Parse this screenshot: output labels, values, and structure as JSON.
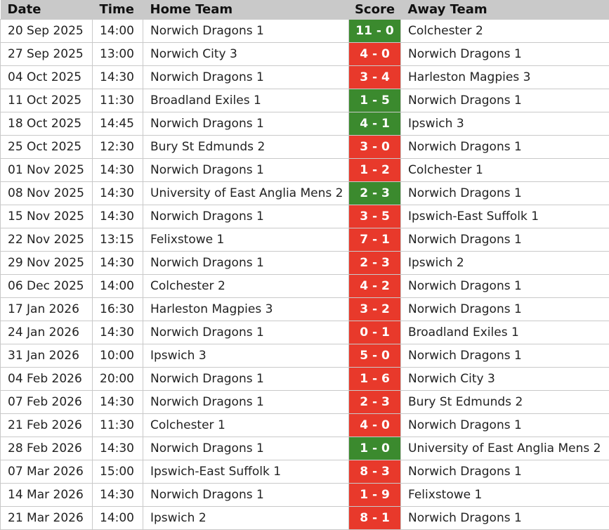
{
  "table": {
    "header": [
      "Date",
      "Time",
      "Home Team",
      "Score",
      "Away Team"
    ],
    "rows": [
      [
        "20 Sep 2025",
        "14:00",
        "Norwich Dragons 1",
        "11 - 0",
        "Colchester 2"
      ],
      [
        "27 Sep 2025",
        "13:00",
        "Norwich City 3",
        "4 - 0",
        "Norwich Dragons 1"
      ],
      [
        "04 Oct 2025",
        "14:30",
        "Norwich Dragons 1",
        "3 - 4",
        "Harleston Magpies 3"
      ],
      [
        "11 Oct 2025",
        "11:30",
        "Broadland Exiles 1",
        "1 - 5",
        "Norwich Dragons 1"
      ],
      [
        "18 Oct 2025",
        "14:45",
        "Norwich Dragons 1",
        "4 - 1",
        "Ipswich 3"
      ],
      [
        "25 Oct 2025",
        "12:30",
        "Bury St Edmunds 2",
        "3 - 0",
        "Norwich Dragons 1"
      ],
      [
        "01 Nov 2025",
        "14:30",
        "Norwich Dragons 1",
        "1 - 2",
        "Colchester 1"
      ],
      [
        "08 Nov 2025",
        "14:30",
        "University of East Anglia Mens 2",
        "2 - 3",
        "Norwich Dragons 1"
      ],
      [
        "15 Nov 2025",
        "14:30",
        "Norwich Dragons 1",
        "3 - 5",
        "Ipswich-East Suffolk 1"
      ],
      [
        "22 Nov 2025",
        "13:15",
        "Felixstowe 1",
        "7 - 1",
        "Norwich Dragons 1"
      ],
      [
        "29 Nov 2025",
        "14:30",
        "Norwich Dragons 1",
        "2 - 3",
        "Ipswich 2"
      ],
      [
        "06 Dec 2025",
        "14:00",
        "Colchester 2",
        "4 - 2",
        "Norwich Dragons 1"
      ],
      [
        "17 Jan 2026",
        "16:30",
        "Harleston Magpies 3",
        "3 - 2",
        "Norwich Dragons 1"
      ],
      [
        "24 Jan 2026",
        "14:30",
        "Norwich Dragons 1",
        "0 - 1",
        "Broadland Exiles 1"
      ],
      [
        "31 Jan 2026",
        "10:00",
        "Ipswich 3",
        "5 - 0",
        "Norwich Dragons 1"
      ],
      [
        "04 Feb 2026",
        "20:00",
        "Norwich Dragons 1",
        "1 - 6",
        "Norwich City 3"
      ],
      [
        "07 Feb 2026",
        "14:30",
        "Norwich Dragons 1",
        "2 - 3",
        "Bury St Edmunds 2"
      ],
      [
        "21 Feb 2026",
        "11:30",
        "Colchester 1",
        "4 - 0",
        "Norwich Dragons 1"
      ],
      [
        "28 Feb 2026",
        "14:30",
        "Norwich Dragons 1",
        "1 - 0",
        "University of East Anglia Mens 2"
      ],
      [
        "07 Mar 2026",
        "15:00",
        "Ipswich-East Suffolk 1",
        "8 - 3",
        "Norwich Dragons 1"
      ],
      [
        "14 Mar 2026",
        "14:30",
        "Norwich Dragons 1",
        "1 - 9",
        "Felixstowe 1"
      ],
      [
        "21 Mar 2026",
        "14:00",
        "Ipswich 2",
        "8 - 1",
        "Norwich Dragons 1"
      ]
    ],
    "score_colors": [
      "#3b8a2e",
      "#e8392b",
      "#e8392b",
      "#3b8a2e",
      "#3b8a2e",
      "#e8392b",
      "#e8392b",
      "#3b8a2e",
      "#e8392b",
      "#e8392b",
      "#e8392b",
      "#e8392b",
      "#e8392b",
      "#e8392b",
      "#e8392b",
      "#e8392b",
      "#e8392b",
      "#e8392b",
      "#3b8a2e",
      "#e8392b",
      "#e8392b",
      "#e8392b"
    ]
  }
}
